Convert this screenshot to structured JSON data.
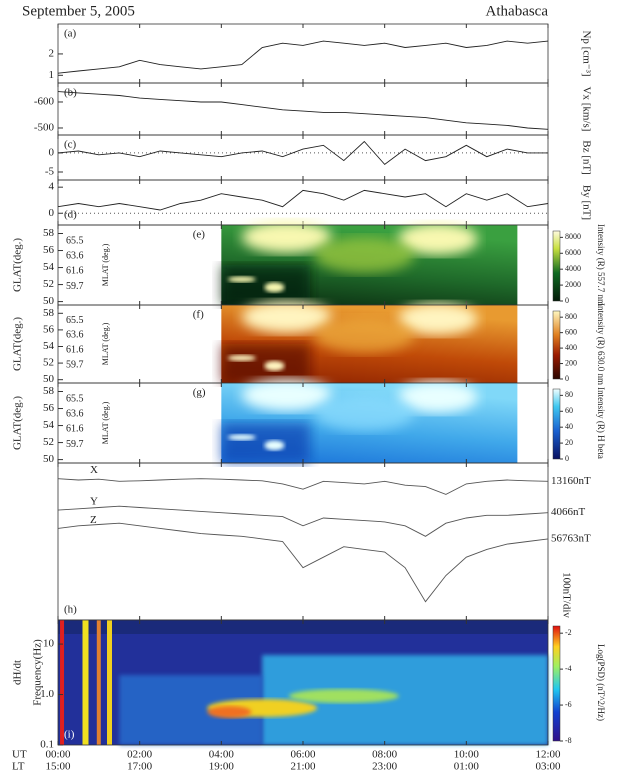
{
  "chart_data": {
    "title": "September 5, 2005",
    "station": "Athabasca",
    "xlim": [
      0,
      12
    ],
    "xticks": [
      {
        "value": 0,
        "label": "00:00"
      },
      {
        "value": 2,
        "label": "02:00"
      },
      {
        "value": 4,
        "label": "04:00"
      },
      {
        "value": 6,
        "label": "06:00"
      },
      {
        "value": 8,
        "label": "08:00"
      },
      {
        "value": 10,
        "label": "10:00"
      },
      {
        "value": 12,
        "label": "12:00"
      }
    ],
    "ut_label": "UT",
    "lt_label": "LT",
    "lt_labels": [
      "15:00",
      "17:00",
      "19:00",
      "21:00",
      "23:00",
      "01:00",
      "03:00"
    ],
    "x": [
      0,
      0.5,
      1,
      1.5,
      2,
      2.5,
      3,
      3.5,
      4,
      4.5,
      5,
      5.5,
      6,
      6.5,
      7,
      7.5,
      8,
      8.5,
      9,
      9.5,
      10,
      10.5,
      11,
      11.5,
      12
    ],
    "panels": [
      {
        "type": "line",
        "label": "(a)",
        "ylabel": "Np [cm⁻³]",
        "ylim": [
          0.64,
          3.4
        ],
        "yticks": [
          1,
          2
        ],
        "series": [
          {
            "color": "#222",
            "values": [
              1.1,
              1.2,
              1.3,
              1.4,
              1.7,
              1.5,
              1.4,
              1.3,
              1.4,
              1.5,
              2.3,
              2.5,
              2.4,
              2.6,
              2.5,
              2.4,
              2.5,
              2.3,
              2.4,
              2.5,
              2.3,
              2.4,
              2.6,
              2.5,
              2.6
            ]
          }
        ]
      },
      {
        "type": "line",
        "label": "(b)",
        "ylabel": "Vx [km/s]",
        "ylim": [
          -473,
          -673
        ],
        "yticks": [
          -600,
          -500
        ],
        "series": [
          {
            "color": "#222",
            "values": [
              -640,
              -635,
              -630,
              -625,
              -615,
              -610,
              -605,
              -600,
              -600,
              -590,
              -580,
              -570,
              -565,
              -560,
              -560,
              -555,
              -550,
              -545,
              -540,
              -530,
              -520,
              -515,
              -510,
              -500,
              -495
            ]
          }
        ]
      },
      {
        "type": "line",
        "label": "(c)",
        "ylabel": "Bz [nT]",
        "ylim": [
          -7.1,
          4.7
        ],
        "yticks": [
          0,
          -5
        ],
        "zero_line": true,
        "series": [
          {
            "color": "#222",
            "values": [
              0,
              0.5,
              -0.5,
              0,
              -1,
              0.5,
              0,
              -0.5,
              -1,
              0,
              0.5,
              -1,
              1,
              2,
              -2,
              3,
              -3,
              1,
              -2,
              -1,
              2,
              -1,
              1,
              0,
              0
            ]
          }
        ]
      },
      {
        "type": "line",
        "label": "(d)",
        "ylabel": "By [nT]",
        "ylim": [
          -1.8,
          5.1
        ],
        "yticks": [
          0,
          4
        ],
        "zero_line": true,
        "series": [
          {
            "color": "#222",
            "values": [
              1,
              1.5,
              1,
              1.5,
              1,
              0.5,
              1.5,
              2,
              3,
              2.5,
              2,
              1,
              3.5,
              3,
              2,
              3.5,
              3,
              2.5,
              3,
              1,
              3,
              2,
              3,
              1,
              1.5
            ]
          }
        ]
      },
      {
        "type": "keogram",
        "label": "(e)",
        "ylabel": "GLAT(deg.)",
        "ylim": [
          49.6,
          59
        ],
        "yticks": [
          50,
          52,
          54,
          56,
          58
        ],
        "mlat_label": "MLAT (deg.)",
        "mlat_ticks": [
          65.5,
          63.6,
          61.6,
          59.7
        ],
        "colormap": "green",
        "colorbar": {
          "label": "Intensity (R) 557.7 nm",
          "lim": [
            0,
            8800
          ],
          "ticks": [
            0,
            2000,
            4000,
            6000,
            8000
          ]
        }
      },
      {
        "type": "keogram",
        "label": "(f)",
        "ylabel": "GLAT(deg.)",
        "ylim": [
          49.6,
          59
        ],
        "yticks": [
          50,
          52,
          54,
          56,
          58
        ],
        "mlat_label": "MLAT (deg.)",
        "mlat_ticks": [
          65.5,
          63.6,
          61.6,
          59.7
        ],
        "colormap": "red",
        "colorbar": {
          "label": "Intensity (R) 630.0 nm",
          "lim": [
            0,
            880
          ],
          "ticks": [
            0,
            200,
            400,
            600,
            800
          ]
        }
      },
      {
        "type": "keogram",
        "label": "(g)",
        "ylabel": "GLAT(deg.)",
        "ylim": [
          49.6,
          59
        ],
        "yticks": [
          50,
          52,
          54,
          56,
          58
        ],
        "mlat_label": "MLAT (deg.)",
        "mlat_ticks": [
          65.5,
          63.6,
          61.6,
          59.7
        ],
        "colormap": "blue",
        "colorbar": {
          "label": "Intensity (R) H beta",
          "lim": [
            0,
            88
          ],
          "ticks": [
            0,
            20,
            40,
            60,
            80
          ]
        }
      },
      {
        "type": "line",
        "label": "(h)",
        "scale_label": "100nT/div",
        "ylim": [
          -420,
          180
        ],
        "series": [
          {
            "name": "X",
            "end_label": "13160nT",
            "color": "#555",
            "values": [
              120,
              115,
              118,
              110,
              112,
              115,
              118,
              120,
              118,
              115,
              112,
              100,
              80,
              110,
              105,
              100,
              110,
              95,
              90,
              60,
              100,
              110,
              115,
              112,
              110
            ]
          },
          {
            "name": "Y",
            "end_label": "4066nT",
            "color": "#555",
            "values": [
              0,
              5,
              10,
              15,
              10,
              5,
              0,
              -5,
              -10,
              -15,
              -20,
              -25,
              -60,
              -30,
              -35,
              -40,
              -45,
              -60,
              -100,
              -50,
              -30,
              -20,
              -20,
              -15,
              -10
            ]
          },
          {
            "name": "Z",
            "end_label": "56763nT",
            "color": "#555",
            "values": [
              -70,
              -60,
              -55,
              -50,
              -60,
              -70,
              -80,
              -90,
              -95,
              -100,
              -110,
              -120,
              -220,
              -180,
              -140,
              -150,
              -160,
              -220,
              -350,
              -250,
              -180,
              -150,
              -130,
              -120,
              -110
            ]
          }
        ]
      },
      {
        "type": "spectrogram",
        "label": "(i)",
        "ylabel": "Frequency(Hz)",
        "ylabel2": "dH/dt",
        "log_scale": true,
        "ylim": [
          0.1,
          30
        ],
        "yticks": [
          0.1,
          {
            "value": 1,
            "label": "1.0"
          },
          10
        ],
        "colorbar": {
          "label": "Log(PSD) (nT^2/Hz)",
          "lim": [
            -8,
            -1.6
          ],
          "ticks": [
            -2,
            -4,
            -6,
            -8
          ]
        }
      }
    ]
  }
}
